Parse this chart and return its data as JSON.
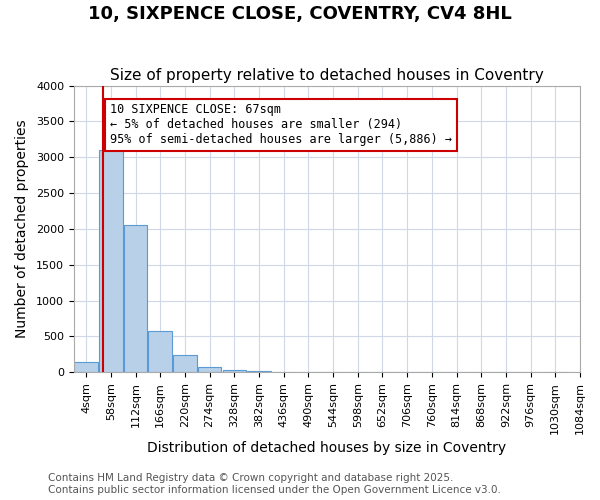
{
  "title1": "10, SIXPENCE CLOSE, COVENTRY, CV4 8HL",
  "title2": "Size of property relative to detached houses in Coventry",
  "xlabel": "Distribution of detached houses by size in Coventry",
  "ylabel": "Number of detached properties",
  "footer1": "Contains HM Land Registry data © Crown copyright and database right 2025.",
  "footer2": "Contains public sector information licensed under the Open Government Licence v3.0.",
  "bin_labels": [
    "4sqm",
    "58sqm",
    "112sqm",
    "166sqm",
    "220sqm",
    "274sqm",
    "328sqm",
    "382sqm",
    "436sqm",
    "490sqm",
    "544sqm",
    "598sqm",
    "652sqm",
    "706sqm",
    "760sqm",
    "814sqm",
    "868sqm",
    "922sqm",
    "976sqm",
    "1030sqm",
    "1084sqm"
  ],
  "bar_values": [
    150,
    3100,
    2050,
    580,
    240,
    80,
    35,
    25,
    0,
    0,
    0,
    0,
    0,
    0,
    0,
    0,
    0,
    0,
    0,
    0
  ],
  "bar_color": "#b8d0e8",
  "bar_edge_color": "#5b9bd5",
  "bar_edge_width": 0.8,
  "grid_color": "#d0d8e8",
  "property_sqm": 67,
  "property_line_color": "#cc0000",
  "annotation_text": "10 SIXPENCE CLOSE: 67sqm\n← 5% of detached houses are smaller (294)\n95% of semi-detached houses are larger (5,886) →",
  "annotation_box_color": "#cc0000",
  "annotation_text_color": "#000000",
  "ylim": [
    0,
    4000
  ],
  "title_fontsize": 13,
  "subtitle_fontsize": 11,
  "axis_fontsize": 10,
  "tick_fontsize": 8,
  "annotation_fontsize": 8.5,
  "footer_fontsize": 7.5
}
